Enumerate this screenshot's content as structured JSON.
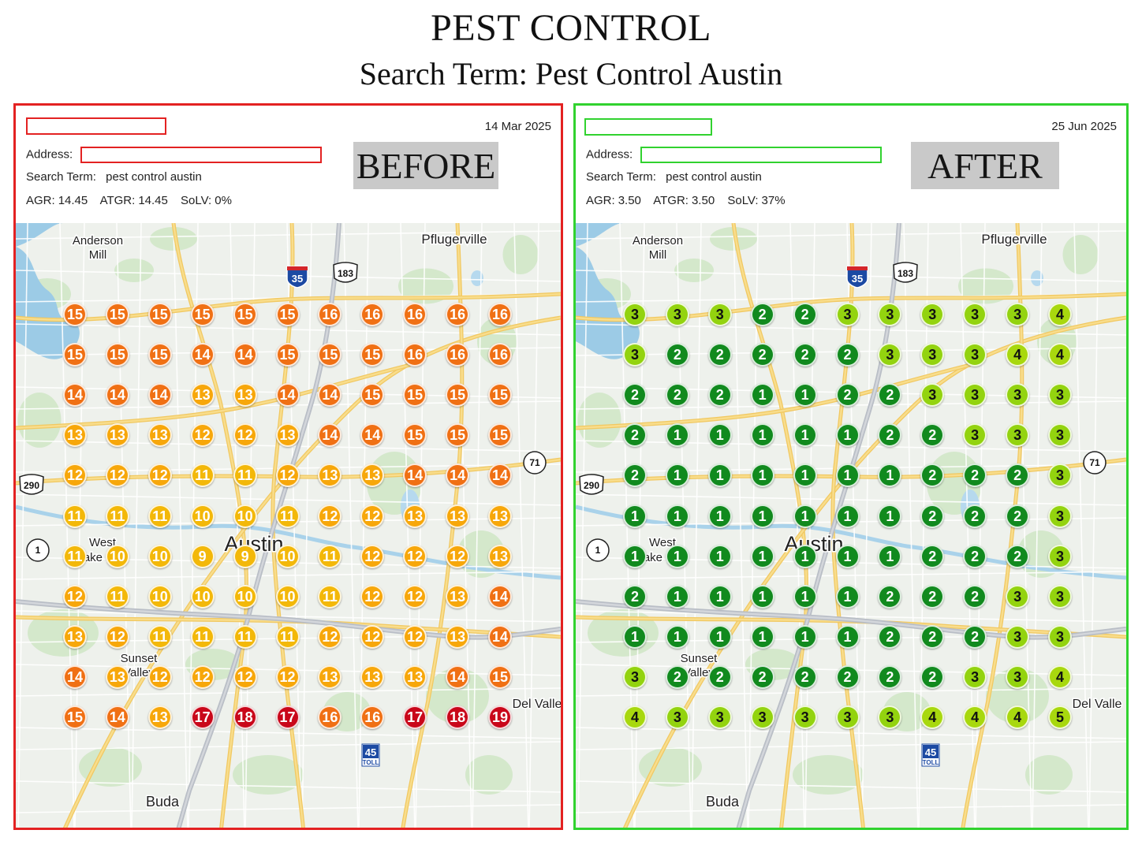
{
  "header": {
    "title": "PEST CONTROL",
    "subtitle": "Search Term: Pest Control Austin"
  },
  "map_labels": {
    "anderson_mill": "Anderson Mill",
    "pflugerville": "Pflugerville",
    "austin": "Austin",
    "west_lake_hills": "West Lake Hills",
    "sunset_valley": "Sunset Valley",
    "del_valle": "Del Valle",
    "buda": "Buda",
    "i35": "35",
    "us183": "183",
    "us290": "290",
    "sh71": "71",
    "loop1": "1",
    "toll45": "45",
    "toll_text": "TOLL"
  },
  "colors": {
    "red_border": "#e32222",
    "green_border": "#31d22f",
    "rank_9_11": "#f3b809",
    "rank_12_13": "#f7a70a",
    "rank_14_16": "#f07014",
    "rank_17_plus": "#c9071a",
    "rank_1_2": "#118a1e",
    "rank_3": "#93d30f",
    "rank_4_5": "#a8d80e"
  },
  "panels": [
    {
      "id": "before",
      "date": "14 Mar 2025",
      "address_label": "Address:",
      "search_label": "Search Term:",
      "search_value": "pest control austin",
      "agr_label": "AGR:",
      "agr_value": "14.45",
      "atgr_label": "ATGR:",
      "atgr_value": "14.45",
      "solv_label": "SoLV:",
      "solv_value": "0%",
      "stamp": "BEFORE",
      "grid": [
        [
          15,
          15,
          15,
          15,
          15,
          15,
          16,
          16,
          16,
          16,
          16
        ],
        [
          15,
          15,
          15,
          14,
          14,
          15,
          15,
          15,
          16,
          16,
          16
        ],
        [
          14,
          14,
          14,
          13,
          13,
          14,
          14,
          15,
          15,
          15,
          15
        ],
        [
          13,
          13,
          13,
          12,
          12,
          13,
          14,
          14,
          15,
          15,
          15
        ],
        [
          12,
          12,
          12,
          11,
          11,
          12,
          13,
          13,
          14,
          14,
          14
        ],
        [
          11,
          11,
          11,
          10,
          10,
          11,
          12,
          12,
          13,
          13,
          13
        ],
        [
          11,
          10,
          10,
          9,
          9,
          10,
          11,
          12,
          12,
          12,
          13
        ],
        [
          12,
          11,
          10,
          10,
          10,
          10,
          11,
          12,
          12,
          13,
          14
        ],
        [
          13,
          12,
          11,
          11,
          11,
          11,
          12,
          12,
          12,
          13,
          14
        ],
        [
          14,
          13,
          12,
          12,
          12,
          12,
          13,
          13,
          13,
          14,
          15
        ],
        [
          15,
          14,
          13,
          17,
          18,
          17,
          16,
          16,
          17,
          18,
          19
        ]
      ]
    },
    {
      "id": "after",
      "date": "25 Jun 2025",
      "address_label": "Address:",
      "search_label": "Search Term:",
      "search_value": "pest control austin",
      "agr_label": "AGR:",
      "agr_value": "3.50",
      "atgr_label": "ATGR:",
      "atgr_value": "3.50",
      "solv_label": "SoLV:",
      "solv_value": "37%",
      "stamp": "AFTER",
      "grid": [
        [
          3,
          3,
          3,
          2,
          2,
          3,
          3,
          3,
          3,
          3,
          4
        ],
        [
          3,
          2,
          2,
          2,
          2,
          2,
          3,
          3,
          3,
          4,
          4
        ],
        [
          2,
          2,
          2,
          1,
          1,
          2,
          2,
          3,
          3,
          3,
          3
        ],
        [
          2,
          1,
          1,
          1,
          1,
          1,
          2,
          2,
          3,
          3,
          3
        ],
        [
          2,
          1,
          1,
          1,
          1,
          1,
          1,
          2,
          2,
          2,
          3
        ],
        [
          1,
          1,
          1,
          1,
          1,
          1,
          1,
          2,
          2,
          2,
          3
        ],
        [
          1,
          1,
          1,
          1,
          1,
          1,
          1,
          2,
          2,
          2,
          3
        ],
        [
          2,
          1,
          1,
          1,
          1,
          1,
          2,
          2,
          2,
          3,
          3
        ],
        [
          1,
          1,
          1,
          1,
          1,
          1,
          2,
          2,
          2,
          3,
          3
        ],
        [
          3,
          2,
          2,
          2,
          2,
          2,
          2,
          2,
          3,
          3,
          4
        ],
        [
          4,
          3,
          3,
          3,
          3,
          3,
          3,
          4,
          4,
          4,
          5
        ]
      ]
    }
  ]
}
